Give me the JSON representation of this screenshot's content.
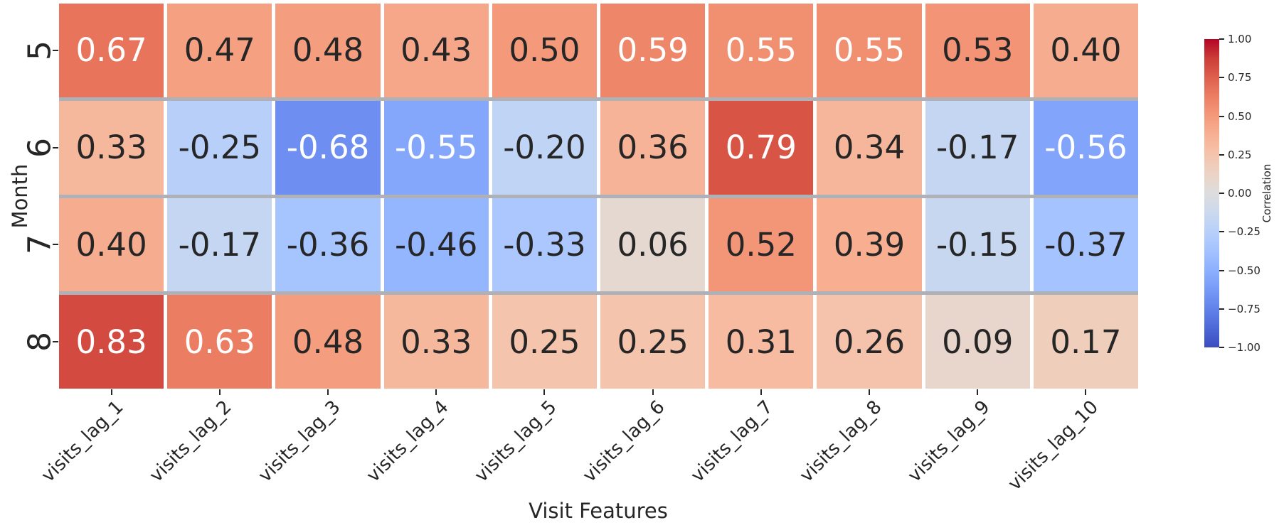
{
  "figure": {
    "xlabel": "Visit Features",
    "ylabel": "Month"
  },
  "chart_data": {
    "type": "heatmap",
    "title": "",
    "xlabel": "Visit Features",
    "ylabel": "Month",
    "x_categories": [
      "visits_lag_1",
      "visits_lag_2",
      "visits_lag_3",
      "visits_lag_4",
      "visits_lag_5",
      "visits_lag_6",
      "visits_lag_7",
      "visits_lag_8",
      "visits_lag_9",
      "visits_lag_10"
    ],
    "y_categories": [
      "5",
      "6",
      "7",
      "8"
    ],
    "values": [
      [
        0.67,
        0.47,
        0.48,
        0.43,
        0.5,
        0.59,
        0.55,
        0.55,
        0.53,
        0.4
      ],
      [
        0.33,
        -0.25,
        -0.68,
        -0.55,
        -0.2,
        0.36,
        0.79,
        0.34,
        -0.17,
        -0.56
      ],
      [
        0.4,
        -0.17,
        -0.36,
        -0.46,
        -0.33,
        0.06,
        0.52,
        0.39,
        -0.15,
        -0.37
      ],
      [
        0.83,
        0.63,
        0.48,
        0.33,
        0.25,
        0.25,
        0.31,
        0.26,
        0.09,
        0.17
      ]
    ],
    "annotation_format": ".2f",
    "colormap": "coolwarm",
    "vmin": -1.0,
    "vmax": 1.0,
    "grid_line_colors": {
      "column_gap": "#ffffff",
      "row_gap": "#aeb2b8"
    },
    "annotation_text_colors": {
      "light": "#ffffff",
      "dark": "#262626"
    },
    "colormap_key_colors": {
      "min": "#3b4cc0",
      "mid": "#dddddd",
      "max": "#b40426"
    },
    "colorbar": {
      "label": "Correlation",
      "tick_labels": [
        "1.00",
        "0.75",
        "0.50",
        "0.25",
        "0.00",
        "−0.25",
        "−0.50",
        "−0.75",
        "−1.00"
      ],
      "tick_values": [
        1.0,
        0.75,
        0.5,
        0.25,
        0.0,
        -0.25,
        -0.5,
        -0.75,
        -1.0
      ],
      "position": "right"
    }
  }
}
